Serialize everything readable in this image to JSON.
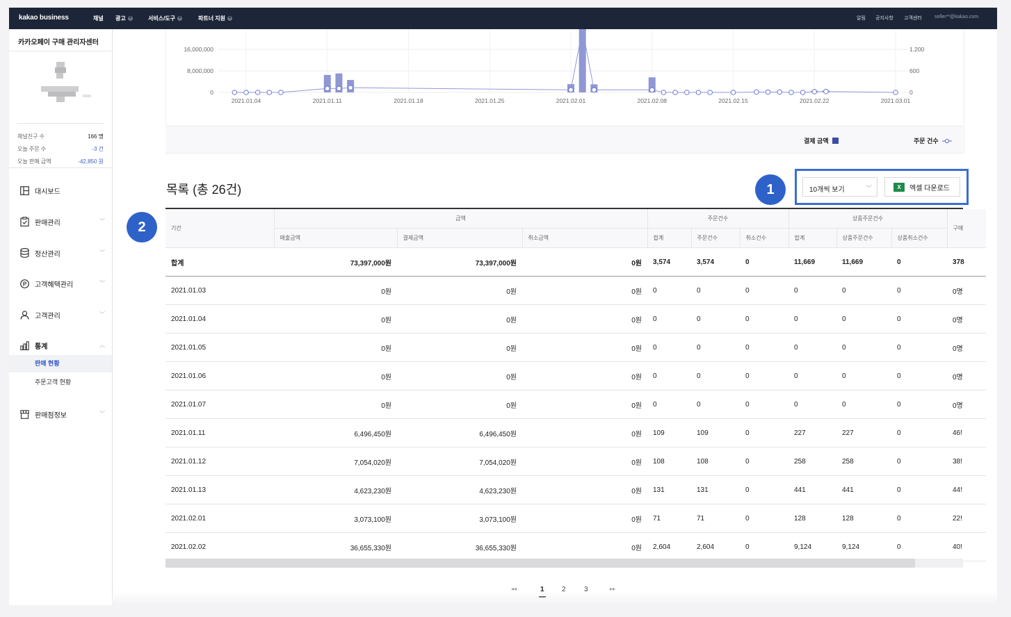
{
  "topnav": {
    "logo": "kakao business",
    "menus": [
      "채널",
      "광고",
      "서비스/도구",
      "파트너 지원"
    ],
    "right": [
      "알림",
      "공지사항",
      "고객센터",
      "seller**@kakao.com"
    ]
  },
  "sidebar": {
    "title": "카카오페이 구매 관리자센터",
    "stats": [
      {
        "label": "채널친구 수",
        "value": "166 명"
      },
      {
        "label": "오늘 주문 수",
        "value": "-3 건"
      },
      {
        "label": "오늘 판매 금액",
        "value": "-42,850 원"
      }
    ],
    "items": [
      {
        "label": "대시보드",
        "icon": "dashboard-icon"
      },
      {
        "label": "판매관리",
        "icon": "clipboard-icon"
      },
      {
        "label": "정산관리",
        "icon": "database-icon"
      },
      {
        "label": "고객혜택관리",
        "icon": "points-icon"
      },
      {
        "label": "고객관리",
        "icon": "person-icon"
      },
      {
        "label": "통계",
        "icon": "bar-chart-icon"
      },
      {
        "label": "판매점정보",
        "icon": "store-icon"
      }
    ],
    "subitems": [
      "판매 현황",
      "주문고객 현황"
    ]
  },
  "chart_data": {
    "type": "bar",
    "left_axis_ticks": [
      "16,000,000",
      "8,000,000",
      "0"
    ],
    "right_axis_ticks": [
      "1,200",
      "600",
      "0"
    ],
    "x_tick_labels": [
      "2021.01.04",
      "2021.01.11",
      "2021.01.18",
      "2021.01.25",
      "2021.02.01",
      "2021.02.08",
      "2021.02.15",
      "2021.02.22",
      "2021.03.01"
    ],
    "series": [
      {
        "name": "결제 금액",
        "kind": "bar",
        "color": "#8f97d4",
        "values": [
          {
            "x": "2021.01.11",
            "y": 6496450
          },
          {
            "x": "2021.01.12",
            "y": 7054020
          },
          {
            "x": "2021.01.13",
            "y": 4623230
          },
          {
            "x": "2021.02.01",
            "y": 3073100
          },
          {
            "x": "2021.02.02",
            "y": 36655330
          },
          {
            "x": "2021.02.03",
            "y": 3000000
          },
          {
            "x": "2021.02.08",
            "y": 5600000
          },
          {
            "x": "2021.02.22",
            "y": 600000
          },
          {
            "x": "2021.02.23",
            "y": 700000
          }
        ]
      },
      {
        "name": "주문 건수",
        "kind": "line",
        "color": "#8f97d4",
        "values": [
          {
            "x": "2021.01.03",
            "y": 0
          },
          {
            "x": "2021.01.04",
            "y": 0
          },
          {
            "x": "2021.01.05",
            "y": 0
          },
          {
            "x": "2021.01.06",
            "y": 0
          },
          {
            "x": "2021.01.07",
            "y": 0
          },
          {
            "x": "2021.01.11",
            "y": 109
          },
          {
            "x": "2021.01.12",
            "y": 108
          },
          {
            "x": "2021.01.13",
            "y": 131
          },
          {
            "x": "2021.02.01",
            "y": 71
          },
          {
            "x": "2021.02.02",
            "y": 2604
          },
          {
            "x": "2021.02.03",
            "y": 70
          },
          {
            "x": "2021.02.08",
            "y": 70
          },
          {
            "x": "2021.02.09",
            "y": 0
          },
          {
            "x": "2021.02.10",
            "y": 0
          },
          {
            "x": "2021.02.11",
            "y": 0
          },
          {
            "x": "2021.02.12",
            "y": 0
          },
          {
            "x": "2021.02.13",
            "y": 0
          },
          {
            "x": "2021.02.15",
            "y": 0
          },
          {
            "x": "2021.02.17",
            "y": 10
          },
          {
            "x": "2021.02.18",
            "y": 10
          },
          {
            "x": "2021.02.19",
            "y": 10
          },
          {
            "x": "2021.02.20",
            "y": 0
          },
          {
            "x": "2021.02.21",
            "y": 0
          },
          {
            "x": "2021.02.22",
            "y": 20
          },
          {
            "x": "2021.02.23",
            "y": 25
          },
          {
            "x": "2021.03.01",
            "y": 0
          }
        ]
      }
    ],
    "legend": [
      "결제 금액",
      "주문 건수"
    ],
    "legend_placement": "bottom-right"
  },
  "list": {
    "title": "목록 (총 26건)",
    "page_size": "10개씩 보기",
    "excel_button": "엑셀 다운로드",
    "excel_icon": "X"
  },
  "badges": [
    "1",
    "2"
  ],
  "table": {
    "groups": [
      "금액",
      "주문건수",
      "상품주문건수",
      "구매"
    ],
    "period_header": "기간",
    "subheaders": [
      "매출금액",
      "결제금액",
      "취소금액",
      "합계",
      "주문건수",
      "취소건수",
      "합계",
      "상품주문건수",
      "상품취소건수"
    ],
    "rows": [
      {
        "period": "합계",
        "sales": "73,397,000원",
        "paid": "73,397,000원",
        "cancel": "0원",
        "o_total": "3,574",
        "o_cnt": "3,574",
        "o_cancel": "0",
        "p_total": "11,669",
        "p_cnt": "11,669",
        "p_cancel": "0",
        "buyers": "378"
      },
      {
        "period": "2021.01.03",
        "sales": "0원",
        "paid": "0원",
        "cancel": "0원",
        "o_total": "0",
        "o_cnt": "0",
        "o_cancel": "0",
        "p_total": "0",
        "p_cnt": "0",
        "p_cancel": "0",
        "buyers": "0명"
      },
      {
        "period": "2021.01.04",
        "sales": "0원",
        "paid": "0원",
        "cancel": "0원",
        "o_total": "0",
        "o_cnt": "0",
        "o_cancel": "0",
        "p_total": "0",
        "p_cnt": "0",
        "p_cancel": "0",
        "buyers": "0명"
      },
      {
        "period": "2021.01.05",
        "sales": "0원",
        "paid": "0원",
        "cancel": "0원",
        "o_total": "0",
        "o_cnt": "0",
        "o_cancel": "0",
        "p_total": "0",
        "p_cnt": "0",
        "p_cancel": "0",
        "buyers": "0명"
      },
      {
        "period": "2021.01.06",
        "sales": "0원",
        "paid": "0원",
        "cancel": "0원",
        "o_total": "0",
        "o_cnt": "0",
        "o_cancel": "0",
        "p_total": "0",
        "p_cnt": "0",
        "p_cancel": "0",
        "buyers": "0명"
      },
      {
        "period": "2021.01.07",
        "sales": "0원",
        "paid": "0원",
        "cancel": "0원",
        "o_total": "0",
        "o_cnt": "0",
        "o_cancel": "0",
        "p_total": "0",
        "p_cnt": "0",
        "p_cancel": "0",
        "buyers": "0명"
      },
      {
        "period": "2021.01.11",
        "sales": "6,496,450원",
        "paid": "6,496,450원",
        "cancel": "0원",
        "o_total": "109",
        "o_cnt": "109",
        "o_cancel": "0",
        "p_total": "227",
        "p_cnt": "227",
        "p_cancel": "0",
        "buyers": "46!"
      },
      {
        "period": "2021.01.12",
        "sales": "7,054,020원",
        "paid": "7,054,020원",
        "cancel": "0원",
        "o_total": "108",
        "o_cnt": "108",
        "o_cancel": "0",
        "p_total": "258",
        "p_cnt": "258",
        "p_cancel": "0",
        "buyers": "38!"
      },
      {
        "period": "2021.01.13",
        "sales": "4,623,230원",
        "paid": "4,623,230원",
        "cancel": "0원",
        "o_total": "131",
        "o_cnt": "131",
        "o_cancel": "0",
        "p_total": "441",
        "p_cnt": "441",
        "p_cancel": "0",
        "buyers": "44!"
      },
      {
        "period": "2021.02.01",
        "sales": "3,073,100원",
        "paid": "3,073,100원",
        "cancel": "0원",
        "o_total": "71",
        "o_cnt": "71",
        "o_cancel": "0",
        "p_total": "128",
        "p_cnt": "128",
        "p_cancel": "0",
        "buyers": "22!"
      },
      {
        "period": "2021.02.02",
        "sales": "36,655,330원",
        "paid": "36,655,330원",
        "cancel": "0원",
        "o_total": "2,604",
        "o_cnt": "2,604",
        "o_cancel": "0",
        "p_total": "9,124",
        "p_cnt": "9,124",
        "p_cancel": "0",
        "buyers": "40!"
      }
    ]
  },
  "pagination": {
    "first": "◂◂",
    "pages": [
      "1",
      "2",
      "3"
    ],
    "last": "▸▸",
    "current": "1"
  }
}
